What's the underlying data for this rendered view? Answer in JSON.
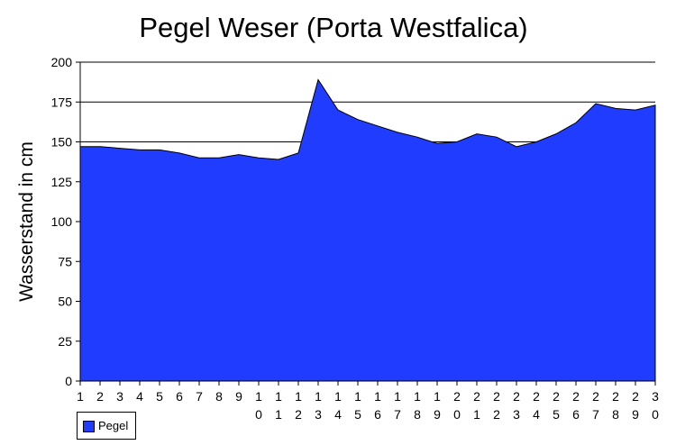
{
  "chart_data": {
    "type": "area",
    "title": "Pegel Weser (Porta Westfalica)",
    "xlabel": "",
    "ylabel": "Wasserstand in cm",
    "ylim": [
      0,
      200
    ],
    "yticks": [
      0,
      25,
      50,
      75,
      100,
      125,
      150,
      175,
      200
    ],
    "gridlines": [
      150,
      175,
      200
    ],
    "categories": [
      "1",
      "2",
      "3",
      "4",
      "5",
      "6",
      "7",
      "8",
      "9",
      "10",
      "11",
      "12",
      "13",
      "14",
      "15",
      "16",
      "17",
      "18",
      "19",
      "20",
      "21",
      "22",
      "23",
      "24",
      "25",
      "26",
      "27",
      "28",
      "29",
      "30"
    ],
    "series": [
      {
        "name": "Pegel",
        "color": "#1f3cff",
        "values": [
          147,
          147,
          146,
          145,
          145,
          143,
          140,
          140,
          142,
          140,
          139,
          143,
          189,
          170,
          164,
          160,
          156,
          153,
          149,
          150,
          155,
          153,
          147,
          150,
          155,
          162,
          174,
          171,
          170,
          173
        ]
      }
    ],
    "legend": {
      "position": "bottom-left"
    }
  }
}
